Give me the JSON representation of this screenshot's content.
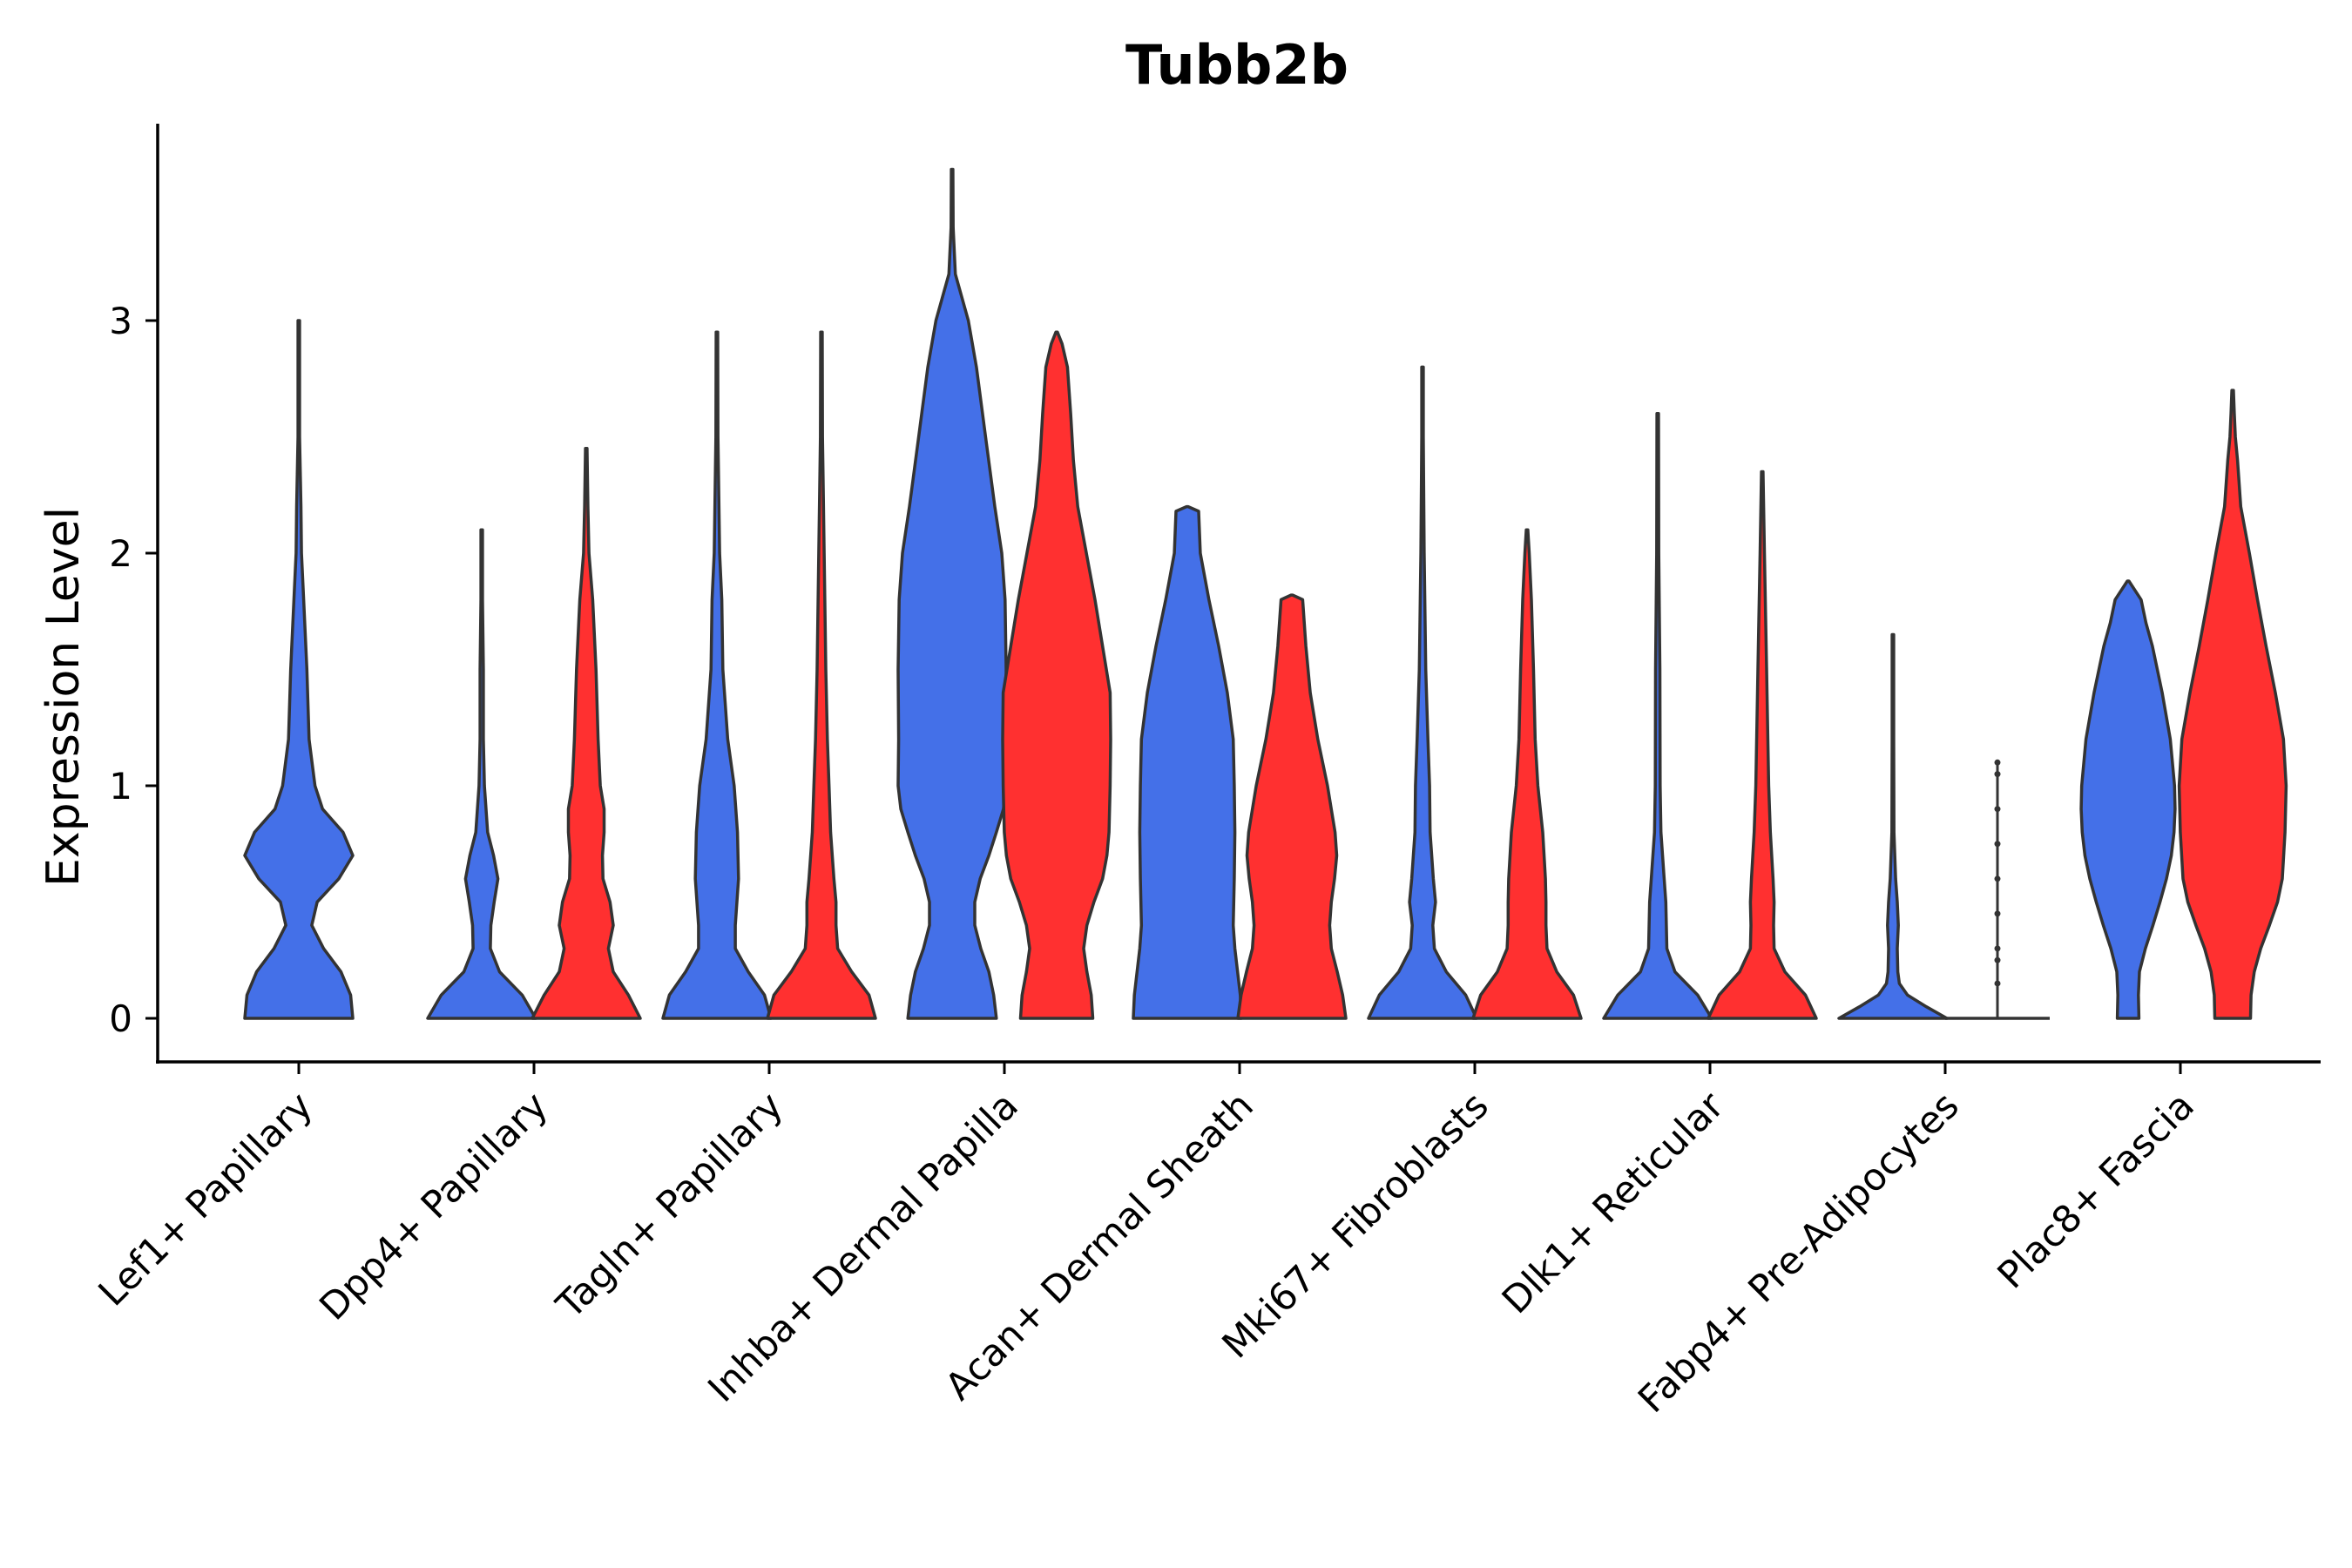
{
  "chart_data": {
    "type": "violin",
    "title": "Tubb2b",
    "xlabel": "",
    "ylabel": "Expression Level",
    "ylim": [
      -0.18,
      3.85
    ],
    "yticks": [
      0,
      1,
      2,
      3
    ],
    "grid": false,
    "legend": "none",
    "categories": [
      "Lef1+ Papillary",
      "Dpp4+ Papillary",
      "Tagln+ Papillary",
      "Inhba+ Dermal Papilla",
      "Acan+ Dermal Sheath",
      "Mki67+ Fibroblasts",
      "Dlk1+ Reticular",
      "Fabp4+ Pre-Adipocytes",
      "Plac8+ Fascia"
    ],
    "colors": {
      "blue": "#4470E8",
      "red": "#FF3030",
      "outline": "#333333"
    },
    "violins": [
      {
        "category": 0,
        "color": "blue",
        "max": 3.0,
        "profile": [
          [
            0,
            1.0
          ],
          [
            0.1,
            0.96
          ],
          [
            0.2,
            0.78
          ],
          [
            0.3,
            0.46
          ],
          [
            0.4,
            0.24
          ],
          [
            0.5,
            0.34
          ],
          [
            0.6,
            0.74
          ],
          [
            0.7,
            1.0
          ],
          [
            0.8,
            0.82
          ],
          [
            0.9,
            0.44
          ],
          [
            1.0,
            0.3
          ],
          [
            1.2,
            0.19
          ],
          [
            1.5,
            0.15
          ],
          [
            1.8,
            0.09
          ],
          [
            2.0,
            0.05
          ],
          [
            2.2,
            0.04
          ],
          [
            2.5,
            0.015
          ],
          [
            3.0,
            0.0
          ]
        ]
      },
      {
        "category": 1,
        "color": "blue",
        "max": 2.1,
        "profile": [
          [
            0,
            1.0
          ],
          [
            0.1,
            0.75
          ],
          [
            0.2,
            0.33
          ],
          [
            0.3,
            0.16
          ],
          [
            0.4,
            0.17
          ],
          [
            0.5,
            0.23
          ],
          [
            0.6,
            0.3
          ],
          [
            0.7,
            0.22
          ],
          [
            0.8,
            0.11
          ],
          [
            1.0,
            0.05
          ],
          [
            1.2,
            0.03
          ],
          [
            1.5,
            0.03
          ],
          [
            1.8,
            0.015
          ],
          [
            2.1,
            0.0
          ]
        ]
      },
      {
        "category": 1,
        "color": "red",
        "max": 2.45,
        "profile": [
          [
            0,
            1.0
          ],
          [
            0.1,
            0.78
          ],
          [
            0.2,
            0.5
          ],
          [
            0.3,
            0.41
          ],
          [
            0.4,
            0.5
          ],
          [
            0.5,
            0.44
          ],
          [
            0.6,
            0.31
          ],
          [
            0.7,
            0.3
          ],
          [
            0.8,
            0.33
          ],
          [
            0.9,
            0.33
          ],
          [
            1.0,
            0.26
          ],
          [
            1.2,
            0.22
          ],
          [
            1.5,
            0.18
          ],
          [
            1.8,
            0.12
          ],
          [
            2.0,
            0.05
          ],
          [
            2.2,
            0.03
          ],
          [
            2.45,
            0.0
          ]
        ]
      },
      {
        "category": 2,
        "color": "blue",
        "max": 2.95,
        "profile": [
          [
            0,
            1.0
          ],
          [
            0.1,
            0.88
          ],
          [
            0.2,
            0.58
          ],
          [
            0.3,
            0.34
          ],
          [
            0.4,
            0.34
          ],
          [
            0.6,
            0.4
          ],
          [
            0.8,
            0.38
          ],
          [
            1.0,
            0.32
          ],
          [
            1.2,
            0.2
          ],
          [
            1.5,
            0.11
          ],
          [
            1.8,
            0.09
          ],
          [
            2.0,
            0.05
          ],
          [
            2.5,
            0.02
          ],
          [
            2.95,
            0.0
          ]
        ]
      },
      {
        "category": 2,
        "color": "red",
        "max": 2.95,
        "profile": [
          [
            0,
            1.0
          ],
          [
            0.1,
            0.88
          ],
          [
            0.2,
            0.56
          ],
          [
            0.3,
            0.3
          ],
          [
            0.4,
            0.27
          ],
          [
            0.5,
            0.27
          ],
          [
            0.6,
            0.23
          ],
          [
            0.8,
            0.17
          ],
          [
            1.0,
            0.14
          ],
          [
            1.2,
            0.11
          ],
          [
            1.5,
            0.08
          ],
          [
            2.0,
            0.05
          ],
          [
            2.5,
            0.02
          ],
          [
            2.95,
            0.0
          ]
        ]
      },
      {
        "category": 3,
        "color": "blue",
        "max": 3.65,
        "profile": [
          [
            0,
            0.82
          ],
          [
            0.1,
            0.77
          ],
          [
            0.2,
            0.68
          ],
          [
            0.3,
            0.53
          ],
          [
            0.4,
            0.42
          ],
          [
            0.5,
            0.42
          ],
          [
            0.6,
            0.52
          ],
          [
            0.7,
            0.68
          ],
          [
            0.8,
            0.82
          ],
          [
            0.9,
            0.95
          ],
          [
            1.0,
            1.0
          ],
          [
            1.2,
            0.99
          ],
          [
            1.5,
            1.0
          ],
          [
            1.8,
            0.98
          ],
          [
            2.0,
            0.92
          ],
          [
            2.2,
            0.79
          ],
          [
            2.5,
            0.62
          ],
          [
            2.8,
            0.45
          ],
          [
            3.0,
            0.3
          ],
          [
            3.2,
            0.06
          ],
          [
            3.4,
            0.02
          ],
          [
            3.65,
            0.0
          ]
        ]
      },
      {
        "category": 3,
        "color": "red",
        "max": 2.95,
        "profile": [
          [
            0,
            0.67
          ],
          [
            0.1,
            0.64
          ],
          [
            0.2,
            0.56
          ],
          [
            0.3,
            0.5
          ],
          [
            0.4,
            0.56
          ],
          [
            0.5,
            0.69
          ],
          [
            0.6,
            0.85
          ],
          [
            0.7,
            0.93
          ],
          [
            0.8,
            0.97
          ],
          [
            1.0,
            0.99
          ],
          [
            1.2,
            1.0
          ],
          [
            1.4,
            0.99
          ],
          [
            1.6,
            0.85
          ],
          [
            1.8,
            0.71
          ],
          [
            2.0,
            0.55
          ],
          [
            2.2,
            0.39
          ],
          [
            2.4,
            0.31
          ],
          [
            2.6,
            0.26
          ],
          [
            2.8,
            0.2
          ],
          [
            2.9,
            0.1
          ],
          [
            2.95,
            0.0
          ]
        ]
      },
      {
        "category": 4,
        "color": "blue",
        "max": 2.2,
        "profile": [
          [
            0,
            1.0
          ],
          [
            0.1,
            0.98
          ],
          [
            0.2,
            0.93
          ],
          [
            0.3,
            0.88
          ],
          [
            0.4,
            0.85
          ],
          [
            0.6,
            0.87
          ],
          [
            0.8,
            0.88
          ],
          [
            1.0,
            0.87
          ],
          [
            1.2,
            0.85
          ],
          [
            1.4,
            0.74
          ],
          [
            1.6,
            0.58
          ],
          [
            1.8,
            0.4
          ],
          [
            2.0,
            0.24
          ],
          [
            2.18,
            0.21
          ],
          [
            2.2,
            0.0
          ]
        ]
      },
      {
        "category": 4,
        "color": "red",
        "max": 1.82,
        "profile": [
          [
            0,
            1.0
          ],
          [
            0.1,
            0.94
          ],
          [
            0.2,
            0.84
          ],
          [
            0.3,
            0.73
          ],
          [
            0.4,
            0.7
          ],
          [
            0.5,
            0.73
          ],
          [
            0.6,
            0.79
          ],
          [
            0.7,
            0.83
          ],
          [
            0.8,
            0.8
          ],
          [
            1.0,
            0.66
          ],
          [
            1.2,
            0.48
          ],
          [
            1.4,
            0.34
          ],
          [
            1.6,
            0.26
          ],
          [
            1.8,
            0.2
          ],
          [
            1.82,
            0.0
          ]
        ]
      },
      {
        "category": 5,
        "color": "blue",
        "max": 2.8,
        "profile": [
          [
            0,
            1.0
          ],
          [
            0.1,
            0.8
          ],
          [
            0.2,
            0.44
          ],
          [
            0.3,
            0.22
          ],
          [
            0.4,
            0.19
          ],
          [
            0.5,
            0.24
          ],
          [
            0.6,
            0.2
          ],
          [
            0.8,
            0.14
          ],
          [
            1.0,
            0.13
          ],
          [
            1.2,
            0.1
          ],
          [
            1.5,
            0.06
          ],
          [
            2.0,
            0.03
          ],
          [
            2.5,
            0.015
          ],
          [
            2.8,
            0.0
          ]
        ]
      },
      {
        "category": 5,
        "color": "red",
        "max": 2.1,
        "profile": [
          [
            0,
            1.0
          ],
          [
            0.1,
            0.86
          ],
          [
            0.2,
            0.55
          ],
          [
            0.3,
            0.37
          ],
          [
            0.4,
            0.35
          ],
          [
            0.5,
            0.35
          ],
          [
            0.6,
            0.34
          ],
          [
            0.8,
            0.29
          ],
          [
            1.0,
            0.2
          ],
          [
            1.2,
            0.15
          ],
          [
            1.5,
            0.12
          ],
          [
            1.8,
            0.08
          ],
          [
            2.0,
            0.04
          ],
          [
            2.1,
            0.0
          ]
        ]
      },
      {
        "category": 6,
        "color": "blue",
        "max": 2.6,
        "profile": [
          [
            0,
            1.0
          ],
          [
            0.1,
            0.74
          ],
          [
            0.2,
            0.32
          ],
          [
            0.3,
            0.17
          ],
          [
            0.4,
            0.16
          ],
          [
            0.5,
            0.15
          ],
          [
            0.6,
            0.12
          ],
          [
            0.8,
            0.06
          ],
          [
            1.0,
            0.045
          ],
          [
            1.5,
            0.04
          ],
          [
            2.0,
            0.02
          ],
          [
            2.6,
            0.0
          ]
        ]
      },
      {
        "category": 6,
        "color": "red",
        "max": 2.35,
        "profile": [
          [
            0,
            1.0
          ],
          [
            0.1,
            0.8
          ],
          [
            0.2,
            0.42
          ],
          [
            0.3,
            0.22
          ],
          [
            0.4,
            0.21
          ],
          [
            0.5,
            0.22
          ],
          [
            0.6,
            0.2
          ],
          [
            0.8,
            0.15
          ],
          [
            1.0,
            0.12
          ],
          [
            1.5,
            0.08
          ],
          [
            2.0,
            0.04
          ],
          [
            2.35,
            0.0
          ]
        ]
      },
      {
        "category": 7,
        "color": "blue",
        "max": 1.65,
        "profile": [
          [
            0,
            1.0
          ],
          [
            0.05,
            0.62
          ],
          [
            0.1,
            0.27
          ],
          [
            0.15,
            0.12
          ],
          [
            0.2,
            0.09
          ],
          [
            0.3,
            0.08
          ],
          [
            0.4,
            0.1
          ],
          [
            0.5,
            0.08
          ],
          [
            0.6,
            0.05
          ],
          [
            0.8,
            0.02
          ],
          [
            1.2,
            0.01
          ],
          [
            1.65,
            0.0
          ]
        ]
      },
      {
        "category": 7,
        "color": "red",
        "max": 1.1,
        "flat": true,
        "points": [
          0.15,
          0.25,
          0.3,
          0.45,
          0.6,
          0.75,
          0.9,
          1.05,
          1.1
        ]
      },
      {
        "category": 8,
        "color": "blue",
        "max": 1.88,
        "profile": [
          [
            0,
            0.2
          ],
          [
            0.1,
            0.19
          ],
          [
            0.2,
            0.21
          ],
          [
            0.3,
            0.32
          ],
          [
            0.4,
            0.46
          ],
          [
            0.5,
            0.59
          ],
          [
            0.6,
            0.71
          ],
          [
            0.7,
            0.8
          ],
          [
            0.8,
            0.85
          ],
          [
            0.9,
            0.87
          ],
          [
            1.0,
            0.86
          ],
          [
            1.2,
            0.78
          ],
          [
            1.4,
            0.63
          ],
          [
            1.6,
            0.45
          ],
          [
            1.7,
            0.33
          ],
          [
            1.8,
            0.24
          ],
          [
            1.88,
            0.0
          ]
        ]
      },
      {
        "category": 8,
        "color": "red",
        "max": 2.7,
        "profile": [
          [
            0,
            0.33
          ],
          [
            0.1,
            0.34
          ],
          [
            0.2,
            0.4
          ],
          [
            0.3,
            0.52
          ],
          [
            0.4,
            0.68
          ],
          [
            0.5,
            0.83
          ],
          [
            0.6,
            0.92
          ],
          [
            0.8,
            0.97
          ],
          [
            1.0,
            0.99
          ],
          [
            1.2,
            0.94
          ],
          [
            1.4,
            0.79
          ],
          [
            1.6,
            0.62
          ],
          [
            1.8,
            0.46
          ],
          [
            2.0,
            0.31
          ],
          [
            2.2,
            0.15
          ],
          [
            2.4,
            0.09
          ],
          [
            2.5,
            0.05
          ],
          [
            2.6,
            0.03
          ],
          [
            2.7,
            0.0
          ]
        ]
      }
    ]
  }
}
